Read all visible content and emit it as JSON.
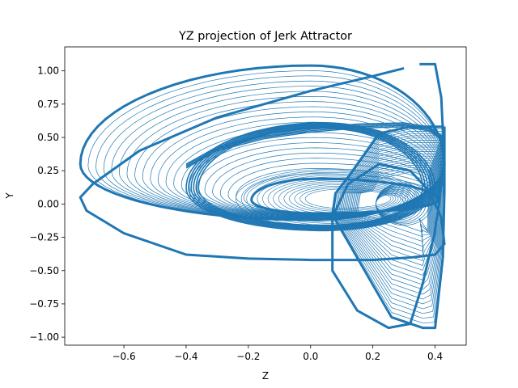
{
  "chart_data": {
    "type": "line",
    "title": "YZ projection of Jerk Attractor",
    "xlabel": "Z",
    "ylabel": "Y",
    "xlim": [
      -0.79,
      0.5
    ],
    "ylim": [
      -1.06,
      1.18
    ],
    "xticks": [
      -0.6,
      -0.4,
      -0.2,
      0.0,
      0.2,
      0.4
    ],
    "xtick_labels": [
      "−0.6",
      "−0.4",
      "−0.2",
      "0.0",
      "0.2",
      "0.4"
    ],
    "yticks": [
      -1.0,
      -0.75,
      -0.5,
      -0.25,
      0.0,
      0.25,
      0.5,
      0.75,
      1.0
    ],
    "ytick_labels": [
      "−1.00",
      "−0.75",
      "−0.50",
      "−0.25",
      "0.00",
      "0.25",
      "0.50",
      "0.75",
      "1.00"
    ],
    "grid": false,
    "line_color": "#1f77b4",
    "series": [
      {
        "name": "",
        "x": [
          0.35,
          0.4,
          0.42,
          0.43,
          0.4,
          0.36,
          0.32,
          0.25,
          0.15,
          0.07,
          0.07,
          0.12,
          0.22,
          0.32,
          0.38,
          0.42,
          0.43,
          0.4,
          0.33,
          0.2,
          0.0,
          -0.2,
          -0.4,
          -0.6,
          -0.72,
          -0.74,
          -0.7,
          -0.55,
          -0.3,
          0.0,
          0.2,
          0.3
        ],
        "y": [
          1.05,
          1.05,
          0.8,
          0.3,
          -0.2,
          -0.6,
          -0.9,
          -0.93,
          -0.8,
          -0.5,
          -0.1,
          0.15,
          0.3,
          0.25,
          0.1,
          -0.1,
          -0.3,
          -0.38,
          -0.4,
          -0.42,
          -0.42,
          -0.41,
          -0.38,
          -0.22,
          -0.05,
          0.05,
          0.15,
          0.4,
          0.65,
          0.85,
          0.96,
          1.02
        ]
      }
    ],
    "annotations": []
  }
}
